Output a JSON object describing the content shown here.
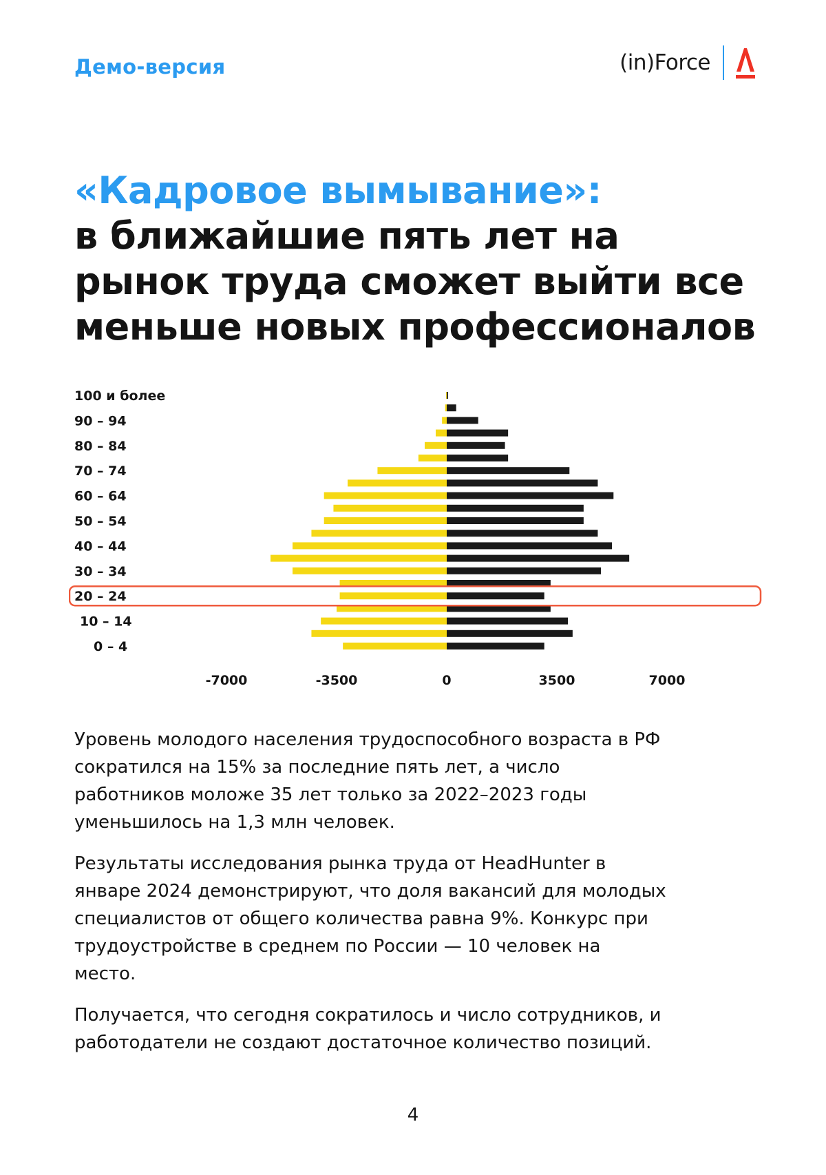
{
  "header": {
    "demo_label": "Демо-версия",
    "brand_text": "(in)Force",
    "logo_icon": "alfa-a-logo",
    "colors": {
      "accent": "#2b9bf0",
      "logo": "#ef3124"
    }
  },
  "title": {
    "accent": "«Кадровое вымывание»:",
    "rest": "в ближайшие пять лет на рынок труда сможет выйти все меньше новых профессионалов"
  },
  "chart_data": {
    "type": "bar",
    "orientation": "horizontal",
    "subtype": "population-pyramid",
    "categories": [
      "0 – 4",
      "",
      "10 – 14",
      "",
      "20 – 24",
      "",
      "30 – 34",
      "",
      "40 – 44",
      "",
      "50 – 54",
      "",
      "60 – 64",
      "",
      "70 – 74",
      "",
      "80 – 84",
      "",
      "90 – 94",
      "",
      "100 и более"
    ],
    "series": [
      {
        "color": "#f5d814",
        "values": [
          -3300,
          -4300,
          -4000,
          -3500,
          -3400,
          -3400,
          -4900,
          -5600,
          -4900,
          -4300,
          -3900,
          -3600,
          -3900,
          -3150,
          -2200,
          -900,
          -700,
          -350,
          -150,
          -50,
          -20
        ]
      },
      {
        "color": "#1a1a1a",
        "values": [
          3100,
          4000,
          3850,
          3300,
          3100,
          3300,
          4900,
          5800,
          5250,
          4800,
          4350,
          4350,
          5300,
          4800,
          3900,
          1950,
          1850,
          1950,
          1000,
          300,
          40
        ]
      }
    ],
    "xticks": [
      "-7000",
      "-3500",
      "0",
      "3500",
      "7000"
    ],
    "xlim": [
      -7000,
      7000
    ],
    "highlight_category": "20 – 24",
    "highlight_color": "#ef5a3c",
    "grid": false,
    "legend": "none"
  },
  "body": {
    "paragraphs": [
      "Уровень молодого населения трудоспособного возраста в РФ сократился на 15% за последние пять лет, а число работников моложе 35 лет только за 2022–2023 годы уменьшилось на 1,3 млн человек.",
      "Результаты исследования рынка труда от HeadHunter в январе 2024 демонстрируют, что доля вакансий для молодых специалистов от общего количества равна 9%. Конкурс при трудоустройстве в среднем по России — 10 человек на место.",
      "Получается, что сегодня сократилось и число сотрудников, и работодатели не создают достаточное количество позиций."
    ]
  },
  "page_number": "4"
}
